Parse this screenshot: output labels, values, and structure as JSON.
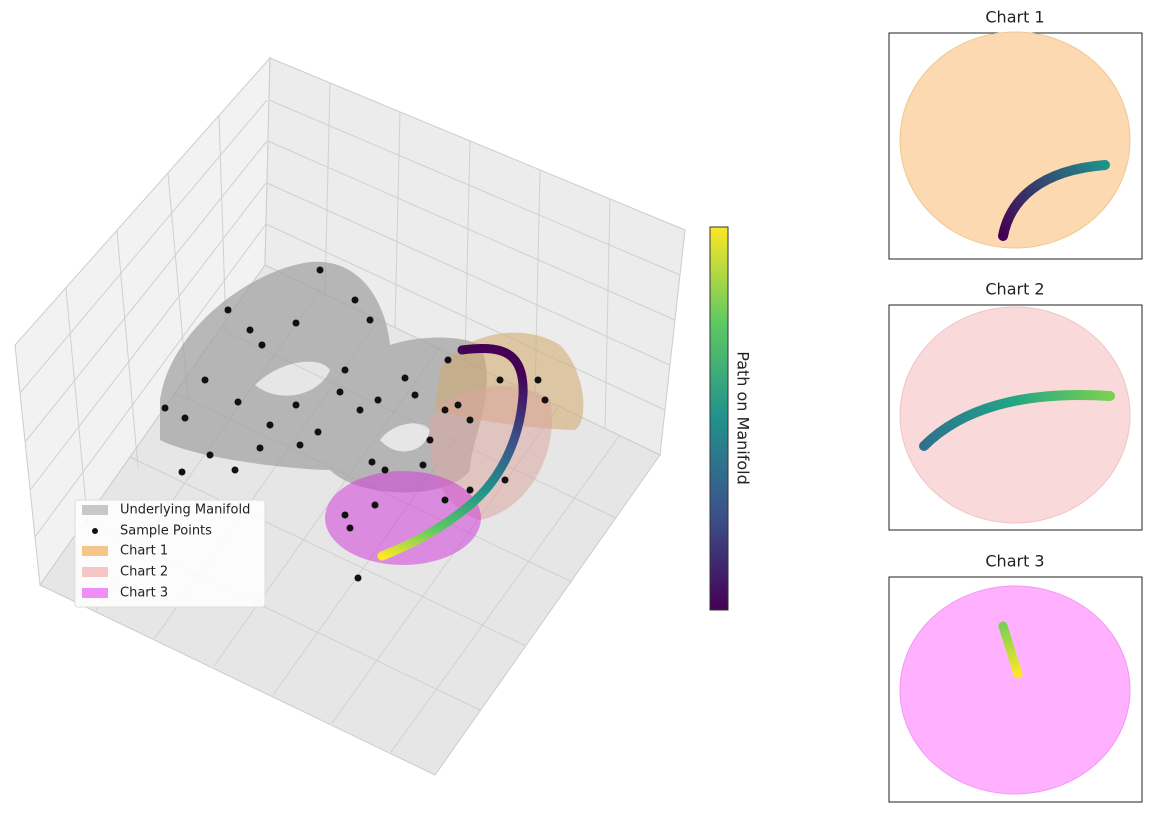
{
  "legend": {
    "entries": [
      "Underlying Manifold",
      "Sample Points",
      "Chart 1",
      "Chart 2",
      "Chart 3"
    ]
  },
  "colorbar": {
    "label": "Path on Manifold"
  },
  "panels": [
    {
      "title": "Chart 1"
    },
    {
      "title": "Chart 2"
    },
    {
      "title": "Chart 3"
    }
  ]
}
